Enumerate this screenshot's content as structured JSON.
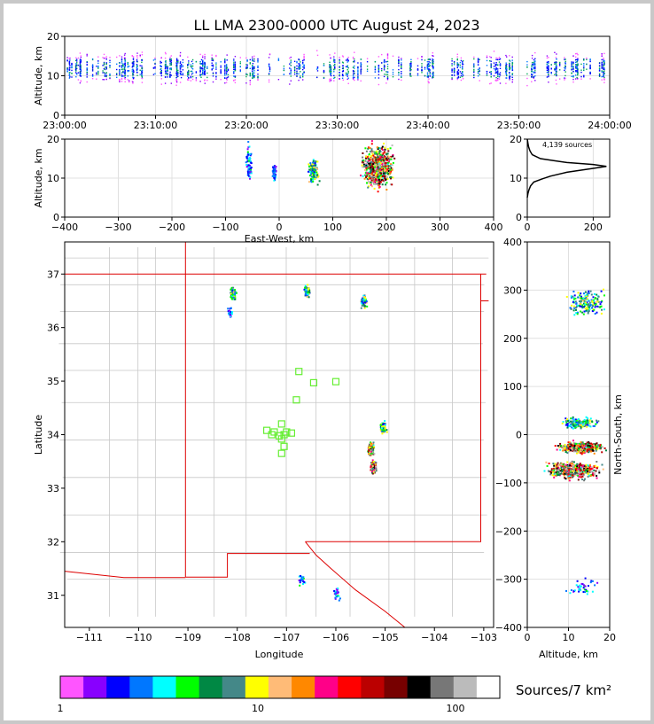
{
  "title": "LL LMA 2300-0000 UTC August 24, 2023",
  "colorbar": {
    "label": "Sources/7 km²",
    "ticks": [
      "1",
      "10",
      "100"
    ],
    "colors": [
      "#ff55ff",
      "#8800ff",
      "#0000ff",
      "#0077ff",
      "#00ffff",
      "#00ff00",
      "#008844",
      "#448888",
      "#ffff00",
      "#ffbb77",
      "#ff8800",
      "#ff0088",
      "#ff0000",
      "#bb0000",
      "#770000",
      "#000000",
      "#777777",
      "#bbbbbb",
      "#ffffff"
    ]
  },
  "chart_data": [
    {
      "id": "time-height",
      "type": "heatmap",
      "ylabel": "Altitude, km",
      "ylim": [
        0,
        20
      ],
      "yticks": [
        "0",
        "10",
        "20"
      ],
      "xlim": [
        "23:00:00",
        "24:00:00"
      ],
      "xticks": [
        "23:00:00",
        "23:10:00",
        "23:20:00",
        "23:30:00",
        "23:40:00",
        "23:50:00",
        "24:00:00"
      ],
      "core_altitude_km": 12
    },
    {
      "id": "ew-height",
      "type": "heatmap",
      "xlabel": "East-West, km",
      "ylabel": "Altitude, km",
      "xlim": [
        -400,
        400
      ],
      "ylim": [
        0,
        20
      ],
      "xticks": [
        "−400",
        "−300",
        "−200",
        "−100",
        "0",
        "100",
        "200",
        "300",
        "400"
      ],
      "yticks": [
        "0",
        "10",
        "20"
      ],
      "clusters": [
        {
          "x": [
            -65,
            -50
          ],
          "z": [
            8,
            20
          ],
          "density": "low"
        },
        {
          "x": [
            -15,
            -5
          ],
          "z": [
            9,
            14
          ],
          "density": "low"
        },
        {
          "x": [
            50,
            75
          ],
          "z": [
            8,
            16
          ],
          "density": "medium"
        },
        {
          "x": [
            145,
            220
          ],
          "z": [
            6,
            20
          ],
          "density": "high"
        }
      ]
    },
    {
      "id": "altitude-histogram",
      "type": "line",
      "annotation": "4,139 sources",
      "xlim": [
        0,
        250
      ],
      "ylim": [
        0,
        20
      ],
      "xticks": [
        "0",
        "200"
      ],
      "yticks": [
        "0",
        "10",
        "20"
      ],
      "x": [
        0,
        2,
        5,
        10,
        20,
        45,
        70,
        120,
        200,
        240,
        200,
        120,
        80,
        40,
        15,
        8,
        4,
        2,
        0
      ],
      "y": [
        5,
        6,
        7,
        8,
        9,
        9.8,
        10.5,
        11.5,
        12.5,
        13,
        13.5,
        14,
        14.5,
        15,
        16,
        17,
        18,
        19,
        20
      ]
    },
    {
      "id": "plan-view",
      "type": "heatmap",
      "xlabel": "Longitude",
      "ylabel": "Latitude",
      "xlim": [
        -111.5,
        -102.8
      ],
      "ylim": [
        30.4,
        37.6
      ],
      "xticks": [
        "−111",
        "−110",
        "−109",
        "−108",
        "−107",
        "−106",
        "−105",
        "−104",
        "−103"
      ],
      "yticks": [
        "31",
        "32",
        "33",
        "34",
        "35",
        "36",
        "37"
      ],
      "stations": [
        [
          -107.4,
          34.08
        ],
        [
          -107.3,
          34.0
        ],
        [
          -107.15,
          33.98
        ],
        [
          -107.05,
          34.0
        ],
        [
          -107.1,
          34.2
        ],
        [
          -107.0,
          34.05
        ],
        [
          -106.9,
          34.03
        ],
        [
          -107.1,
          33.92
        ],
        [
          -107.05,
          33.78
        ],
        [
          -107.1,
          33.65
        ],
        [
          -106.8,
          34.65
        ],
        [
          -106.75,
          35.18
        ],
        [
          -106.45,
          34.97
        ],
        [
          -106.0,
          34.99
        ],
        [
          -107.25,
          34.05
        ]
      ],
      "clusters": [
        {
          "lon": -108.1,
          "lat": 36.65,
          "density": "medium"
        },
        {
          "lon": -108.15,
          "lat": 36.28,
          "density": "low"
        },
        {
          "lon": -106.6,
          "lat": 36.68,
          "density": "medium"
        },
        {
          "lon": -105.45,
          "lat": 36.5,
          "density": "medium"
        },
        {
          "lon": -105.05,
          "lat": 34.15,
          "density": "medium"
        },
        {
          "lon": -105.3,
          "lat": 33.75,
          "density": "high"
        },
        {
          "lon": -105.25,
          "lat": 33.4,
          "density": "high"
        },
        {
          "lon": -106.0,
          "lat": 31.05,
          "density": "low"
        },
        {
          "lon": -106.7,
          "lat": 31.3,
          "density": "low"
        }
      ]
    },
    {
      "id": "ns-height",
      "type": "heatmap",
      "xlabel": "Altitude, km",
      "ylabel": "North-South, km",
      "xlim": [
        0,
        20
      ],
      "ylim": [
        -400,
        400
      ],
      "xticks": [
        "0",
        "10",
        "20"
      ],
      "yticks": [
        "400",
        "300",
        "200",
        "100",
        "0",
        "−100",
        "−200",
        "−300",
        "−400"
      ],
      "clusters": [
        {
          "y": [
            240,
            310
          ],
          "z": [
            8,
            20
          ],
          "density": "medium"
        },
        {
          "y": [
            10,
            40
          ],
          "z": [
            7,
            18
          ],
          "density": "medium"
        },
        {
          "y": [
            -40,
            -10
          ],
          "z": [
            6,
            20
          ],
          "density": "high"
        },
        {
          "y": [
            -95,
            -50
          ],
          "z": [
            2,
            20
          ],
          "density": "high"
        },
        {
          "y": [
            -340,
            -290
          ],
          "z": [
            8,
            18
          ],
          "density": "low"
        }
      ]
    }
  ]
}
